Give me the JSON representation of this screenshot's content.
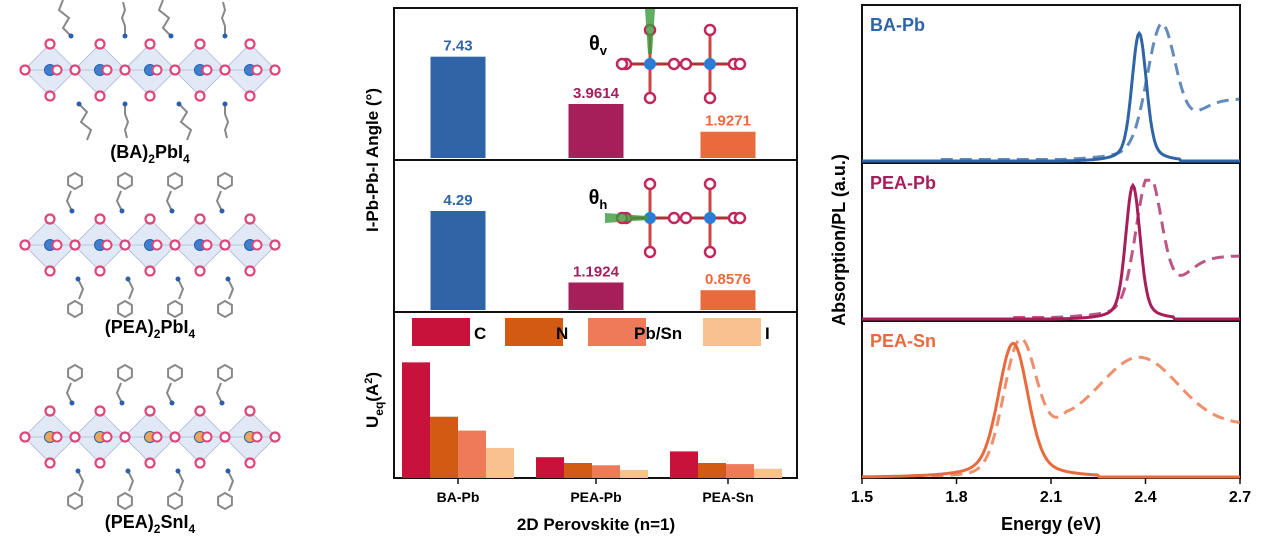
{
  "structures": [
    {
      "prefix": "(BA)",
      "sub": "2",
      "mid": "PbI",
      "sub2": "4",
      "b_metal_color": "#3f7fd0",
      "ligand": "chain"
    },
    {
      "prefix": "(PEA)",
      "sub": "2",
      "mid": "PbI",
      "sub2": "4",
      "b_metal_color": "#3f7fd0",
      "ligand": "ring"
    },
    {
      "prefix": "(PEA)",
      "sub": "2",
      "mid": "SnI",
      "sub2": "4",
      "b_metal_color": "#e9a85a",
      "ligand": "ring"
    }
  ],
  "colors": {
    "ba": "#2f64a6",
    "pea_pb": "#a61e5a",
    "pea_sn": "#e96a3c",
    "c": "#c8123c",
    "n": "#d35a12",
    "pbsn": "#ee7a5a",
    "i": "#f7c290",
    "iodine": "#e0457a",
    "octahedron": "#c9d6ee"
  },
  "chart_data": [
    {
      "type": "bar",
      "panel": "theta_v",
      "categories": [
        "BA-Pb",
        "PEA-Pb",
        "PEA-Sn"
      ],
      "values": [
        7.43,
        3.9614,
        1.9271
      ],
      "value_labels": [
        "7.43",
        "3.9614",
        "1.9271"
      ],
      "ylim": [
        0,
        11
      ],
      "annotation": {
        "symbol": "θ",
        "sub": "v"
      }
    },
    {
      "type": "bar",
      "panel": "theta_h",
      "categories": [
        "BA-Pb",
        "PEA-Pb",
        "PEA-Sn"
      ],
      "values": [
        4.29,
        1.1924,
        0.8576
      ],
      "value_labels": [
        "4.29",
        "1.1924",
        "0.8576"
      ],
      "ylim": [
        0,
        6.5
      ],
      "annotation": {
        "symbol": "θ",
        "sub": "h"
      }
    },
    {
      "type": "bar",
      "panel": "ueq",
      "categories": [
        "BA-Pb",
        "PEA-Pb",
        "PEA-Sn"
      ],
      "series": [
        {
          "name": "C",
          "values": [
            1.0,
            0.18,
            0.23
          ]
        },
        {
          "name": "N",
          "values": [
            0.53,
            0.13,
            0.13
          ]
        },
        {
          "name": "Pb/Sn",
          "values": [
            0.41,
            0.11,
            0.12
          ]
        },
        {
          "name": "I",
          "values": [
            0.26,
            0.07,
            0.08
          ]
        }
      ],
      "ylim": [
        0,
        1.05
      ]
    },
    {
      "type": "line",
      "panels": [
        {
          "label": "BA-Pb",
          "abs_peak": 2.45,
          "pl_peak": 2.38,
          "abs_params": {
            "exciton_w": 0.045,
            "exciton_h": 0.78,
            "tail": 0.42,
            "cont_start": 2.55,
            "cont_h": 0.28
          },
          "pl_params": {
            "w": 0.022,
            "h": 0.88
          }
        },
        {
          "label": "PEA-Pb",
          "abs_peak": 2.41,
          "pl_peak": 2.36,
          "abs_params": {
            "exciton_w": 0.04,
            "exciton_h": 0.85,
            "tail": 0.38,
            "cont_start": 2.52,
            "cont_h": 0.3
          },
          "pl_params": {
            "w": 0.022,
            "h": 0.92
          }
        },
        {
          "label": "PEA-Sn",
          "abs_peak": 2.0,
          "pl_peak": 1.98,
          "abs_params": {
            "exciton_w": 0.05,
            "exciton_h": 0.82,
            "tail": 0.35,
            "cont_start": 2.28,
            "cont_h": 0.78
          },
          "pl_params": {
            "w": 0.045,
            "h": 0.92
          }
        }
      ],
      "xlim": [
        1.5,
        2.7
      ],
      "xticks": [
        1.5,
        1.8,
        2.1,
        2.4,
        2.7
      ],
      "xlabel": "Energy (eV)",
      "ylabel": "Absorption/PL (a.u.)"
    }
  ],
  "text": {
    "angle_ylabel": "I-Pb-Pb-I Angle (°)",
    "ueq_ylabel_main": "U",
    "ueq_ylabel_sub": "eq",
    "ueq_ylabel_unit_open": "(A",
    "ueq_ylabel_sup": "2",
    "ueq_ylabel_close": ")",
    "bar_xlabel": "2D Perovskite (n=1)"
  }
}
